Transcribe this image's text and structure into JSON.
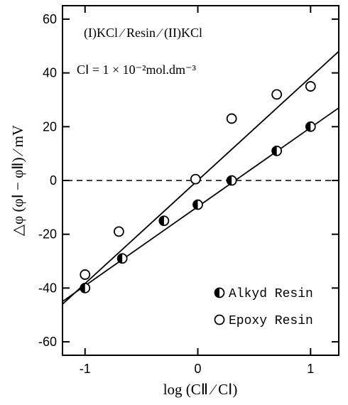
{
  "chart_data": {
    "type": "scatter",
    "xlabel": "log (CⅡ ∕ CⅠ)",
    "ylabel": "△φ (φⅠ − φⅡ) ∕ mV",
    "xlim": [
      -1.2,
      1.25
    ],
    "ylim": [
      -65,
      65
    ],
    "x_ticks": [
      "-1",
      "0",
      "1"
    ],
    "y_ticks": [
      "60",
      "40",
      "20",
      "0",
      "-20",
      "-40",
      "-60"
    ],
    "annotations": {
      "line1": "(I)KCl ∕ Resin ∕ (II)KCl",
      "line2": "CⅠ = 1 × 10⁻²mol.dm⁻³"
    },
    "legend_position": "bottom-right",
    "grid": false,
    "zero_line": "dashed",
    "series": [
      {
        "name": "Alkyd Resin",
        "marker": "half-filled-circle",
        "x": [
          -1.0,
          -0.67,
          -0.3,
          0.0,
          0.3,
          0.7,
          1.0
        ],
        "y": [
          -40,
          -29,
          -15,
          -9,
          0,
          11,
          20
        ],
        "fit": {
          "x": [
            -1.2,
            1.25
          ],
          "y": [
            -45,
            27
          ]
        }
      },
      {
        "name": "Epoxy Resin",
        "marker": "open-circle",
        "x": [
          -1.0,
          -0.7,
          -0.02,
          0.3,
          0.7,
          1.0
        ],
        "y": [
          -35,
          -19,
          0.5,
          23,
          32,
          35
        ],
        "fit": {
          "x": [
            -1.2,
            1.25
          ],
          "y": [
            -46,
            48
          ]
        }
      }
    ]
  }
}
